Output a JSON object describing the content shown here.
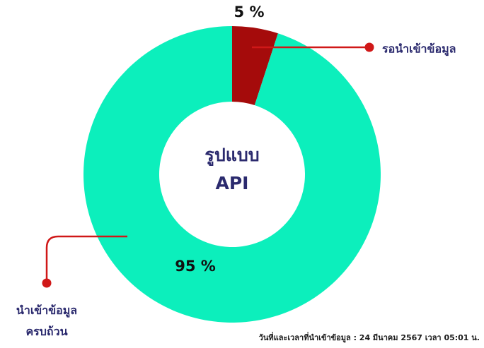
{
  "chart_data": {
    "type": "pie",
    "donut": true,
    "title": "รูปแบบ API",
    "categories": [
      "รอนำเข้าข้อมูล",
      "นำเข้าข้อมูล ครบถ้วน"
    ],
    "values": [
      5,
      95
    ],
    "value_labels": [
      "5 %",
      "95 %"
    ],
    "colors": [
      "#a50b0b",
      "#0cefbc"
    ],
    "footnote": "วันที่และเวลาที่นำเข้าข้อมูล : 24 มีนาคม 2567 เวลา 05:01 น."
  }
}
